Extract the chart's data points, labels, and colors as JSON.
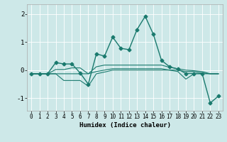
{
  "xlabel": "Humidex (Indice chaleur)",
  "xlim": [
    -0.5,
    23.5
  ],
  "ylim": [
    -1.45,
    2.35
  ],
  "yticks": [
    -1,
    0,
    1,
    2
  ],
  "xticks": [
    0,
    1,
    2,
    3,
    4,
    5,
    6,
    7,
    8,
    9,
    10,
    11,
    12,
    13,
    14,
    15,
    16,
    17,
    18,
    19,
    20,
    21,
    22,
    23
  ],
  "background_color": "#cde8e8",
  "grid_color": "#ffffff",
  "line_color": "#1a7a6e",
  "lines": [
    {
      "x": [
        0,
        1,
        2,
        3,
        4,
        5,
        6,
        7,
        8,
        9,
        10,
        11,
        12,
        13,
        14,
        15,
        16,
        17,
        18,
        19,
        20,
        21,
        22,
        23
      ],
      "y": [
        -0.13,
        -0.13,
        -0.13,
        0.27,
        0.22,
        0.22,
        -0.1,
        -0.5,
        0.58,
        0.5,
        1.18,
        0.78,
        0.73,
        1.45,
        1.92,
        1.28,
        0.35,
        0.12,
        0.04,
        -0.12,
        -0.12,
        -0.12,
        -1.17,
        -0.93
      ],
      "marker": "D",
      "markersize": 2.5,
      "linewidth": 1.0
    },
    {
      "x": [
        0,
        1,
        2,
        3,
        4,
        5,
        6,
        7,
        8,
        9,
        10,
        11,
        12,
        13,
        14,
        15,
        16,
        17,
        18,
        19,
        20,
        21,
        22,
        23
      ],
      "y": [
        -0.13,
        -0.13,
        -0.13,
        -0.13,
        -0.13,
        -0.13,
        -0.13,
        -0.13,
        -0.05,
        0.0,
        0.05,
        0.05,
        0.05,
        0.05,
        0.05,
        0.05,
        0.05,
        0.0,
        0.0,
        -0.05,
        -0.05,
        -0.1,
        -0.13,
        -0.13
      ],
      "marker": null,
      "markersize": 0,
      "linewidth": 0.8
    },
    {
      "x": [
        0,
        1,
        2,
        3,
        4,
        5,
        6,
        7,
        8,
        9,
        10,
        11,
        12,
        13,
        14,
        15,
        16,
        17,
        18,
        19,
        20,
        21,
        22,
        23
      ],
      "y": [
        -0.13,
        -0.13,
        -0.13,
        0.02,
        0.02,
        0.08,
        0.08,
        -0.13,
        0.12,
        0.18,
        0.18,
        0.18,
        0.18,
        0.18,
        0.18,
        0.18,
        0.18,
        0.1,
        0.05,
        0.0,
        -0.02,
        -0.05,
        -0.13,
        -0.13
      ],
      "marker": null,
      "markersize": 0,
      "linewidth": 0.8
    },
    {
      "x": [
        0,
        1,
        2,
        3,
        4,
        5,
        6,
        7,
        8,
        9,
        10,
        11,
        12,
        13,
        14,
        15,
        16,
        17,
        18,
        19,
        20,
        21,
        22,
        23
      ],
      "y": [
        -0.13,
        -0.13,
        -0.13,
        -0.13,
        -0.37,
        -0.37,
        -0.37,
        -0.57,
        -0.13,
        -0.07,
        0.0,
        0.0,
        0.0,
        0.0,
        0.0,
        0.0,
        0.0,
        0.0,
        -0.05,
        -0.32,
        -0.13,
        -0.13,
        -0.13,
        -0.13
      ],
      "marker": null,
      "markersize": 0,
      "linewidth": 0.8
    }
  ]
}
